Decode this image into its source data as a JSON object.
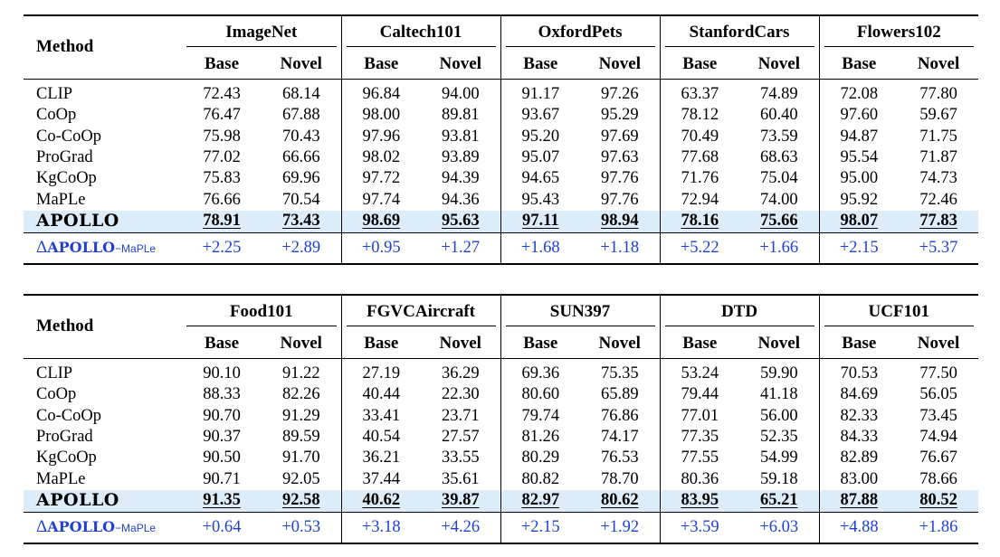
{
  "labels": {
    "method": "Method",
    "base": "Base",
    "novel": "Novel",
    "delta_symbol": "Δ",
    "delta_name": "APOLLO",
    "delta_suffix": "−MaPLe"
  },
  "tables": [
    {
      "datasets": [
        "ImageNet",
        "Caltech101",
        "OxfordPets",
        "StanfordCars",
        "Flowers102"
      ],
      "rows": [
        {
          "method": "CLIP",
          "values": [
            "72.43",
            "68.14",
            "96.84",
            "94.00",
            "91.17",
            "97.26",
            "63.37",
            "74.89",
            "72.08",
            "77.80"
          ]
        },
        {
          "method": "CoOp",
          "values": [
            "76.47",
            "67.88",
            "98.00",
            "89.81",
            "93.67",
            "95.29",
            "78.12",
            "60.40",
            "97.60",
            "59.67"
          ]
        },
        {
          "method": "Co-CoOp",
          "values": [
            "75.98",
            "70.43",
            "97.96",
            "93.81",
            "95.20",
            "97.69",
            "70.49",
            "73.59",
            "94.87",
            "71.75"
          ]
        },
        {
          "method": "ProGrad",
          "values": [
            "77.02",
            "66.66",
            "98.02",
            "93.89",
            "95.07",
            "97.63",
            "77.68",
            "68.63",
            "95.54",
            "71.87"
          ]
        },
        {
          "method": "KgCoOp",
          "values": [
            "75.83",
            "69.96",
            "97.72",
            "94.39",
            "94.65",
            "97.76",
            "71.76",
            "75.04",
            "95.00",
            "74.73"
          ]
        },
        {
          "method": "MaPLe",
          "values": [
            "76.66",
            "70.54",
            "97.74",
            "94.36",
            "95.43",
            "97.76",
            "72.94",
            "74.00",
            "95.92",
            "72.46"
          ]
        }
      ],
      "highlight": {
        "method": "APOLLO",
        "values": [
          "78.91",
          "73.43",
          "98.69",
          "95.63",
          "97.11",
          "98.94",
          "78.16",
          "75.66",
          "98.07",
          "77.83"
        ]
      },
      "delta": [
        "+2.25",
        "+2.89",
        "+0.95",
        "+1.27",
        "+1.68",
        "+1.18",
        "+5.22",
        "+1.66",
        "+2.15",
        "+5.37"
      ]
    },
    {
      "datasets": [
        "Food101",
        "FGVCAircraft",
        "SUN397",
        "DTD",
        "UCF101"
      ],
      "rows": [
        {
          "method": "CLIP",
          "values": [
            "90.10",
            "91.22",
            "27.19",
            "36.29",
            "69.36",
            "75.35",
            "53.24",
            "59.90",
            "70.53",
            "77.50"
          ]
        },
        {
          "method": "CoOp",
          "values": [
            "88.33",
            "82.26",
            "40.44",
            "22.30",
            "80.60",
            "65.89",
            "79.44",
            "41.18",
            "84.69",
            "56.05"
          ]
        },
        {
          "method": "Co-CoOp",
          "values": [
            "90.70",
            "91.29",
            "33.41",
            "23.71",
            "79.74",
            "76.86",
            "77.01",
            "56.00",
            "82.33",
            "73.45"
          ]
        },
        {
          "method": "ProGrad",
          "values": [
            "90.37",
            "89.59",
            "40.54",
            "27.57",
            "81.26",
            "74.17",
            "77.35",
            "52.35",
            "84.33",
            "74.94"
          ]
        },
        {
          "method": "KgCoOp",
          "values": [
            "90.50",
            "91.70",
            "36.21",
            "33.55",
            "80.29",
            "76.53",
            "77.55",
            "54.99",
            "82.89",
            "76.67"
          ]
        },
        {
          "method": "MaPLe",
          "values": [
            "90.71",
            "92.05",
            "37.44",
            "35.61",
            "80.82",
            "78.70",
            "80.36",
            "59.18",
            "83.00",
            "78.66"
          ]
        }
      ],
      "highlight": {
        "method": "APOLLO",
        "values": [
          "91.35",
          "92.58",
          "40.62",
          "39.87",
          "82.97",
          "80.62",
          "83.95",
          "65.21",
          "87.88",
          "80.52"
        ]
      },
      "delta": [
        "+0.64",
        "+0.53",
        "+3.18",
        "+4.26",
        "+2.15",
        "+1.92",
        "+3.59",
        "+6.03",
        "+4.88",
        "+1.86"
      ]
    }
  ],
  "colors": {
    "highlight_row": "#dcecf9",
    "delta_text": "#1f3fd6"
  }
}
